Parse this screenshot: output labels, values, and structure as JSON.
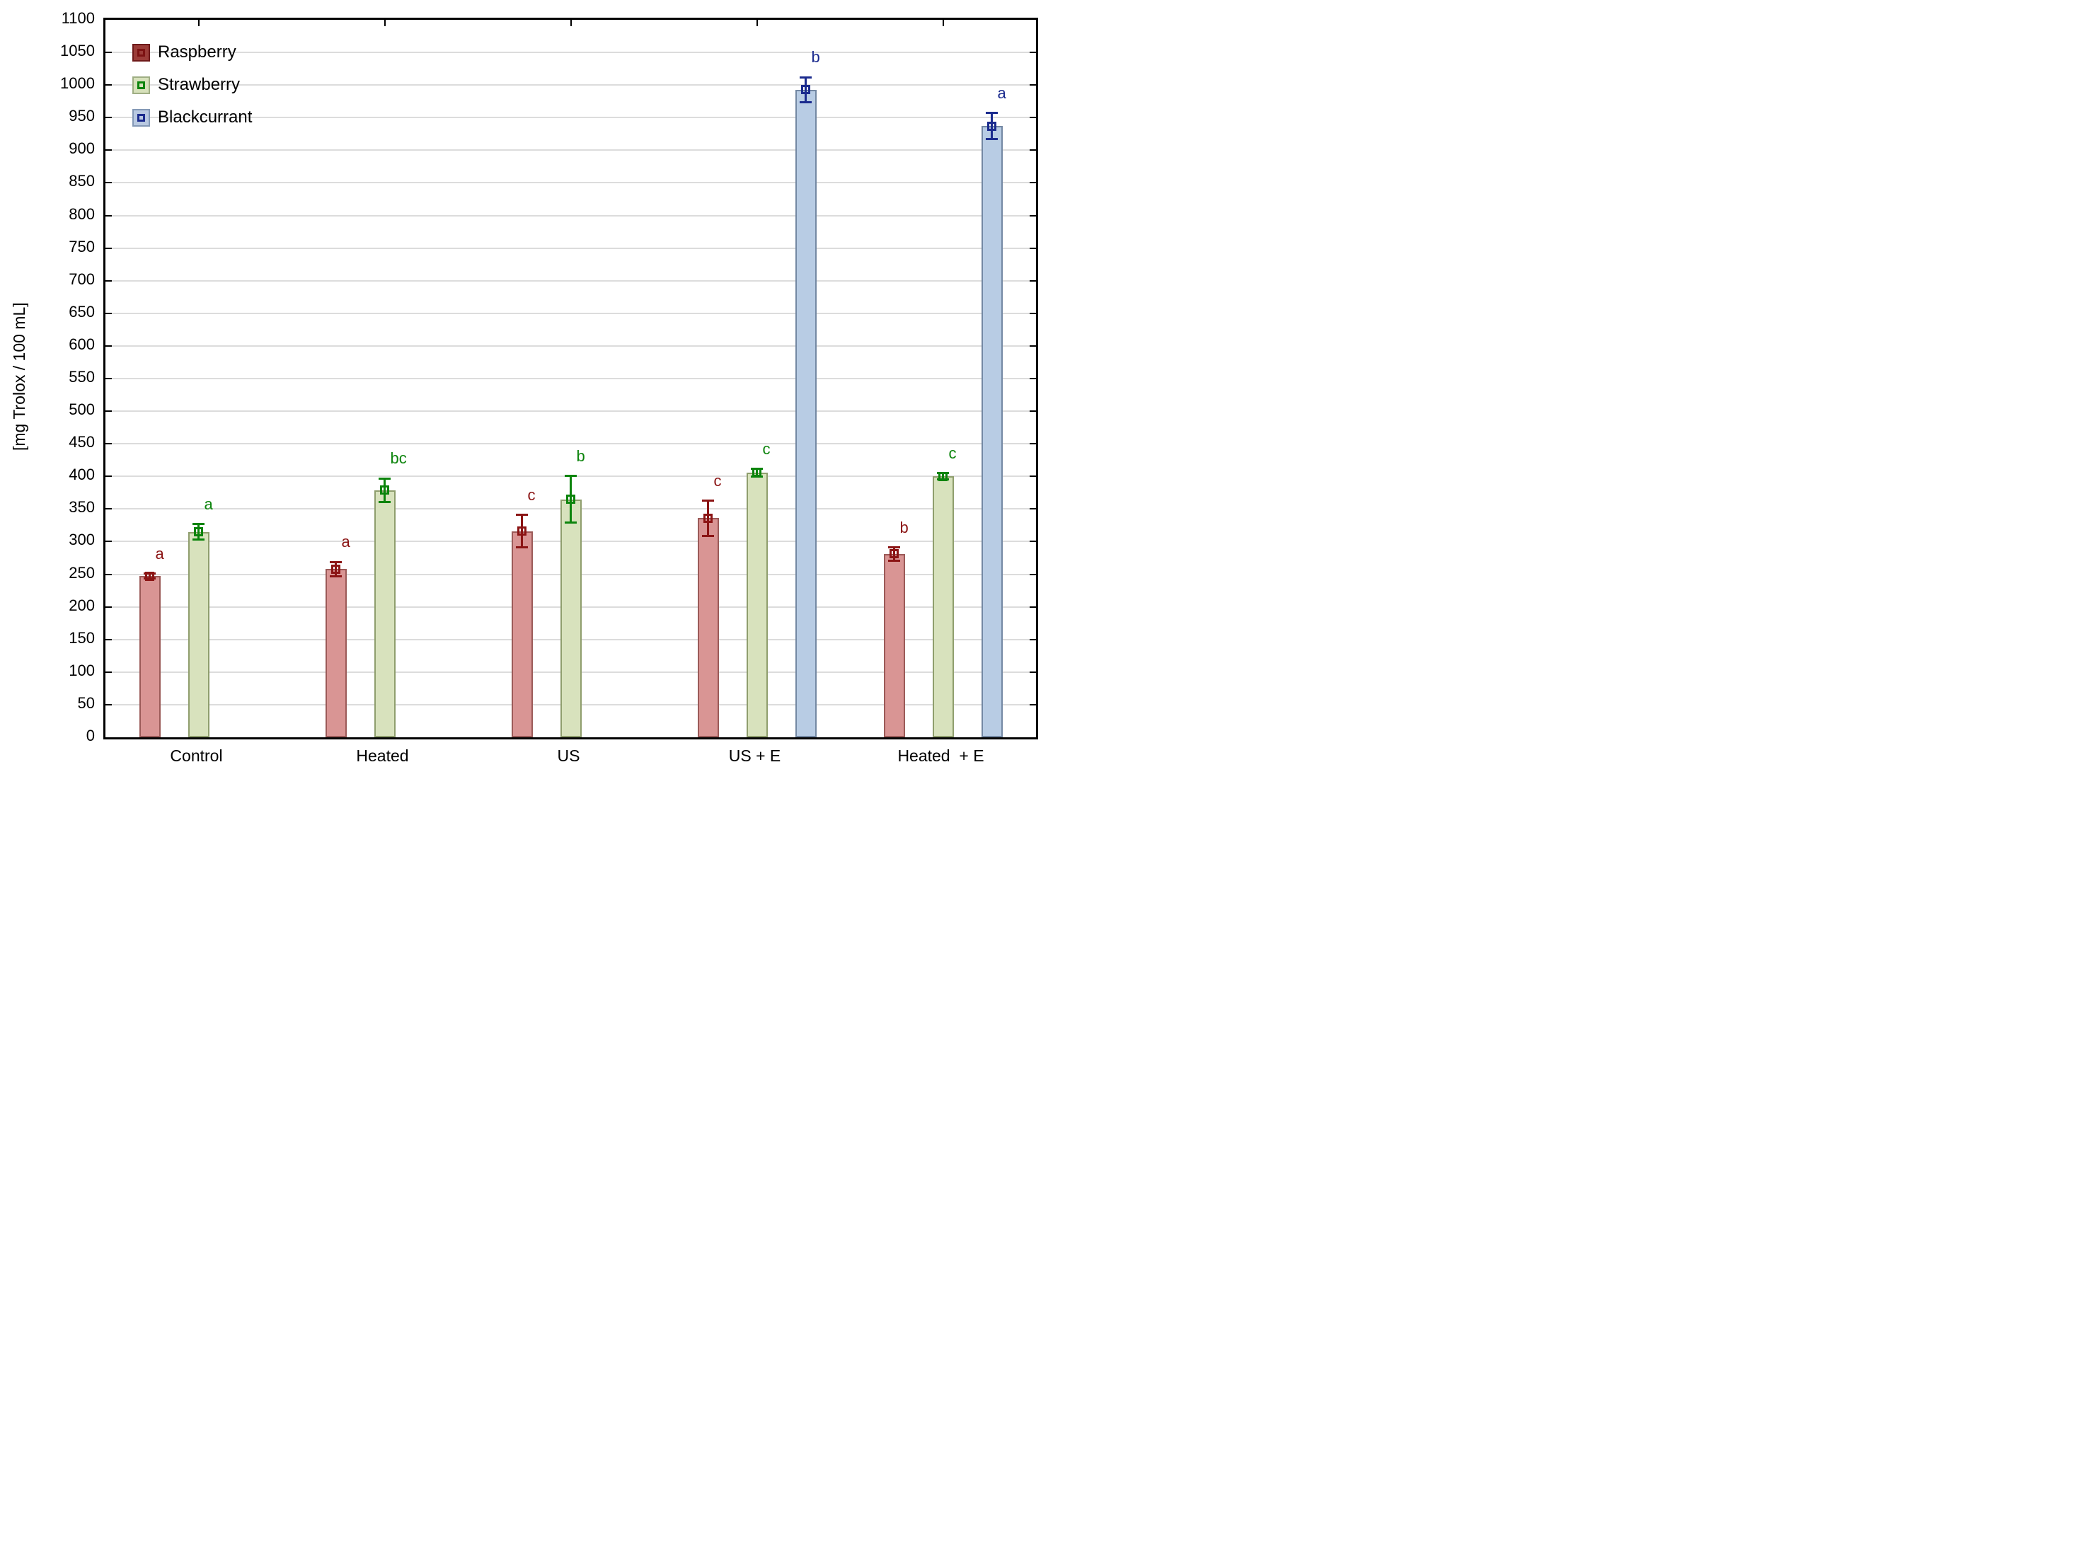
{
  "chart_data": {
    "type": "bar",
    "title": "",
    "xlabel": "",
    "ylabel": "[mg Trolox / 100 mL]",
    "ylim": [
      0,
      1100
    ],
    "ytick_step": 50,
    "ytick_labels": [
      "0",
      "50",
      "100",
      "150",
      "200",
      "250",
      "300",
      "350",
      "400",
      "450",
      "500",
      "550",
      "600",
      "650",
      "700",
      "750",
      "800",
      "850",
      "900",
      "950",
      "1000",
      "1050",
      "1100"
    ],
    "grid": "horizontal",
    "gridline_color": "#dcdcdc",
    "axis_color": "#000000",
    "legend_position": "top-left-inside",
    "categories": [
      "Control",
      "Heated",
      "US",
      "US + E",
      "Heated  + E"
    ],
    "series": [
      {
        "name": "Raspberry",
        "values": [
          247,
          258,
          316,
          336,
          281
        ],
        "errors": [
          4,
          11,
          25,
          27,
          10
        ],
        "letters": [
          "a",
          "a",
          "c",
          "c",
          "b"
        ],
        "fill": "#d99594",
        "edge": "#9b5a58",
        "accent": "#8b1414",
        "legend_fill": "#9b3c38",
        "legend_edge": "#6e1a1a"
      },
      {
        "name": "Strawberry",
        "values": [
          315,
          379,
          365,
          406,
          400
        ],
        "errors": [
          12,
          18,
          36,
          6,
          5
        ],
        "letters": [
          "a",
          "bc",
          "b",
          "c",
          "c"
        ],
        "fill": "#d8e2bd",
        "edge": "#8f9e6d",
        "accent": "#0c840c",
        "legend_fill": "#d7e1bb",
        "legend_edge": "#9fae84"
      },
      {
        "name": "Blackcurrant",
        "values": [
          null,
          null,
          null,
          993,
          937
        ],
        "errors": [
          null,
          null,
          null,
          19,
          20
        ],
        "letters": [
          null,
          null,
          null,
          "b",
          "a"
        ],
        "fill": "#b8cce4",
        "edge": "#7388a3",
        "accent": "#1b2b8e",
        "legend_fill": "#b9c9e1",
        "legend_edge": "#8499b6"
      }
    ]
  }
}
